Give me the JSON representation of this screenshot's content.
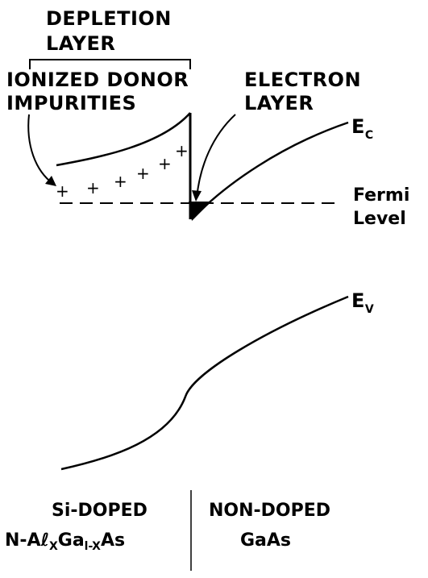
{
  "labels": {
    "depletion_line1": "DEPLETION",
    "depletion_line2": "LAYER",
    "ionized_line1": "IONIZED DONOR",
    "ionized_line2": "IMPURITIES",
    "electron_line1": "ELECTRON",
    "electron_line2": "LAYER",
    "ec_main": "E",
    "ec_sub": "C",
    "ev_main": "E",
    "ev_sub": "V",
    "fermi_line1": "Fermi",
    "fermi_line2": "Level",
    "left_line1": "Si-DOPED",
    "left_line2_a": "N-A",
    "left_line2_l": "ℓ",
    "left_line2_x": "X",
    "left_line2_b": "Ga",
    "left_line2_sub": "l-X",
    "left_line2_c": "As",
    "right_line1": "NON-DOPED",
    "right_line2": "GaAs"
  },
  "donor_symbol": "+",
  "colors": {
    "ink": "#000000",
    "background": "#ffffff"
  }
}
